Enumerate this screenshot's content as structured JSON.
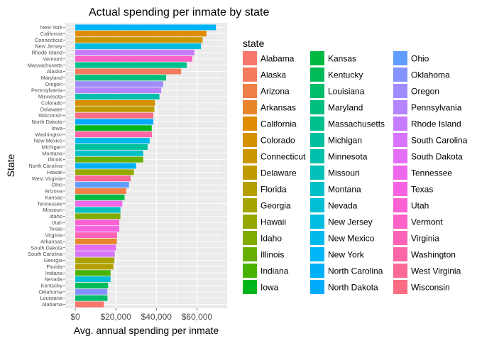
{
  "chart_data": {
    "type": "bar",
    "orientation": "horizontal",
    "title": "Actual spending per inmate by state",
    "xlabel": "Avg. annual spending per inmate",
    "ylabel": "State",
    "xlim": [
      0,
      72000
    ],
    "x_ticks": [
      0,
      20000,
      40000,
      60000
    ],
    "x_tick_labels": [
      "$0",
      "$20,000",
      "$40,000",
      "$60,000"
    ],
    "grid": true,
    "legend_title": "state",
    "legend_position": "right",
    "categories": [
      "New York",
      "California",
      "Connecticut",
      "New Jersey",
      "Rhode Island",
      "Vermont",
      "Massachusetts",
      "Alaska",
      "Maryland",
      "Oregon",
      "Pennsylvania",
      "Minnesota",
      "Colorado",
      "Delaware",
      "Wisconsin",
      "North Dakota",
      "Iowa",
      "Washington",
      "New Mexico",
      "Michigan",
      "Montana",
      "Illinois",
      "North Carolina",
      "Hawaii",
      "West Virginia",
      "Ohio",
      "Arizona",
      "Kansas",
      "Tennessee",
      "Missouri",
      "Idaho",
      "Utah",
      "Texas",
      "Virginia",
      "Arkansas",
      "South Dakota",
      "South Carolina",
      "Georgia",
      "Florida",
      "Indiana",
      "Nevada",
      "Kentucky",
      "Oklahoma",
      "Louisiana",
      "Alabama"
    ],
    "values": [
      69400,
      64700,
      62800,
      62000,
      58700,
      57700,
      55000,
      52200,
      44800,
      43400,
      42400,
      41500,
      39300,
      39000,
      38500,
      38500,
      37700,
      37800,
      36700,
      35700,
      33500,
      33500,
      30000,
      28900,
      27300,
      26500,
      25200,
      24300,
      23200,
      22300,
      22300,
      21700,
      21700,
      20600,
      20500,
      20100,
      19500,
      19300,
      18800,
      17400,
      17400,
      16200,
      15800,
      15900,
      14100
    ],
    "legend_entries": [
      "Alabama",
      "Alaska",
      "Arizona",
      "Arkansas",
      "California",
      "Colorado",
      "Connecticut",
      "Delaware",
      "Florida",
      "Georgia",
      "Hawaii",
      "Idaho",
      "Illinois",
      "Indiana",
      "Iowa",
      "Kansas",
      "Kentucky",
      "Louisiana",
      "Maryland",
      "Massachusetts",
      "Michigan",
      "Minnesota",
      "Missouri",
      "Montana",
      "Nevada",
      "New Jersey",
      "New Mexico",
      "New York",
      "North Carolina",
      "North Dakota",
      "Ohio",
      "Oklahoma",
      "Oregon",
      "Pennsylvania",
      "Rhode Island",
      "South Carolina",
      "South Dakota",
      "Tennessee",
      "Texas",
      "Utah",
      "Vermont",
      "Virginia",
      "Washington",
      "West Virginia",
      "Wisconsin"
    ],
    "colors": [
      "#F8766D",
      "#F47B5B",
      "#EF7F46",
      "#E8852B",
      "#E08B00",
      "#D69100",
      "#CC9600",
      "#C09B00",
      "#B3A000",
      "#A5A400",
      "#94A800",
      "#80AC00",
      "#68B000",
      "#48B300",
      "#00B61B",
      "#00B940",
      "#00BB57",
      "#00BC6B",
      "#00BE7D",
      "#00BF8D",
      "#00C09D",
      "#00C0AB",
      "#00C0B9",
      "#00C0C7",
      "#00BED4",
      "#00BCE0",
      "#00B9EC",
      "#00B5F7",
      "#00B0F6",
      "#00ABFD",
      "#619CFF",
      "#8493FF",
      "#9F8CFF",
      "#B584FF",
      "#C77CFF",
      "#D774FB",
      "#E46EF5",
      "#EF67EB",
      "#F763E0",
      "#FC61D4",
      "#FF61C6",
      "#FF63B7",
      "#FF66A7",
      "#FD6997",
      "#FB6D85"
    ]
  }
}
